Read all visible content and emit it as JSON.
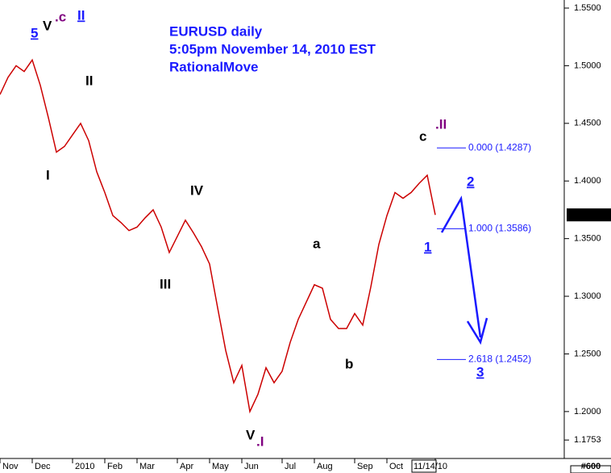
{
  "chart_data": {
    "type": "line",
    "title": [
      "EURUSD daily",
      "5:05pm November 14, 2010 EST",
      "RationalMove"
    ],
    "categories": [
      "Nov",
      null,
      null,
      null,
      "Dec",
      null,
      null,
      null,
      null,
      "2010",
      null,
      null,
      null,
      "Feb",
      null,
      null,
      null,
      "Mar",
      null,
      null,
      null,
      null,
      "Apr",
      null,
      null,
      null,
      "May",
      null,
      null,
      null,
      "Jun",
      null,
      null,
      null,
      null,
      "Jul",
      null,
      null,
      null,
      "Aug",
      null,
      null,
      null,
      null,
      "Sep",
      null,
      null,
      null,
      "Oct",
      null,
      null,
      null,
      null,
      null,
      "11/14/10"
    ],
    "values": [
      1.475,
      1.49,
      1.5,
      1.495,
      1.505,
      1.483,
      1.455,
      1.425,
      1.43,
      1.44,
      1.45,
      1.435,
      1.408,
      1.39,
      1.37,
      1.364,
      1.357,
      1.36,
      1.368,
      1.375,
      1.36,
      1.338,
      1.352,
      1.366,
      1.355,
      1.343,
      1.328,
      1.29,
      1.253,
      1.225,
      1.24,
      1.2,
      1.215,
      1.238,
      1.225,
      1.235,
      1.26,
      1.28,
      1.295,
      1.31,
      1.307,
      1.28,
      1.272,
      1.272,
      1.285,
      1.275,
      1.308,
      1.345,
      1.37,
      1.39,
      1.385,
      1.39,
      1.398,
      1.405,
      1.3706
    ],
    "color": "#cc0000",
    "ylim": [
      1.16,
      1.557
    ],
    "yticks": [
      {
        "value": 1.55,
        "label": "1.5500"
      },
      {
        "value": 1.5,
        "label": "1.5000"
      },
      {
        "value": 1.45,
        "label": "1.4500"
      },
      {
        "value": 1.4,
        "label": "1.4000"
      },
      {
        "value": 1.35,
        "label": "1.3500"
      },
      {
        "value": 1.3,
        "label": "1.3000"
      },
      {
        "value": 1.25,
        "label": "1.2500"
      },
      {
        "value": 1.2,
        "label": "1.2000"
      },
      1.1753
    ],
    "fib_levels": [
      {
        "price": 1.4287,
        "label": "0.000 (1.4287)"
      },
      {
        "price": 1.3586,
        "label": "1.000 (1.3586)"
      },
      {
        "price": 1.2452,
        "label": "2.618 (1.2452)"
      }
    ],
    "annotations": [
      "5",
      "V",
      ".c",
      "II",
      "II",
      "I",
      "IV",
      "III",
      "V",
      ".I",
      "a",
      "b",
      "c",
      ".II",
      "1",
      "2",
      "3"
    ],
    "footer_label": "#600"
  }
}
